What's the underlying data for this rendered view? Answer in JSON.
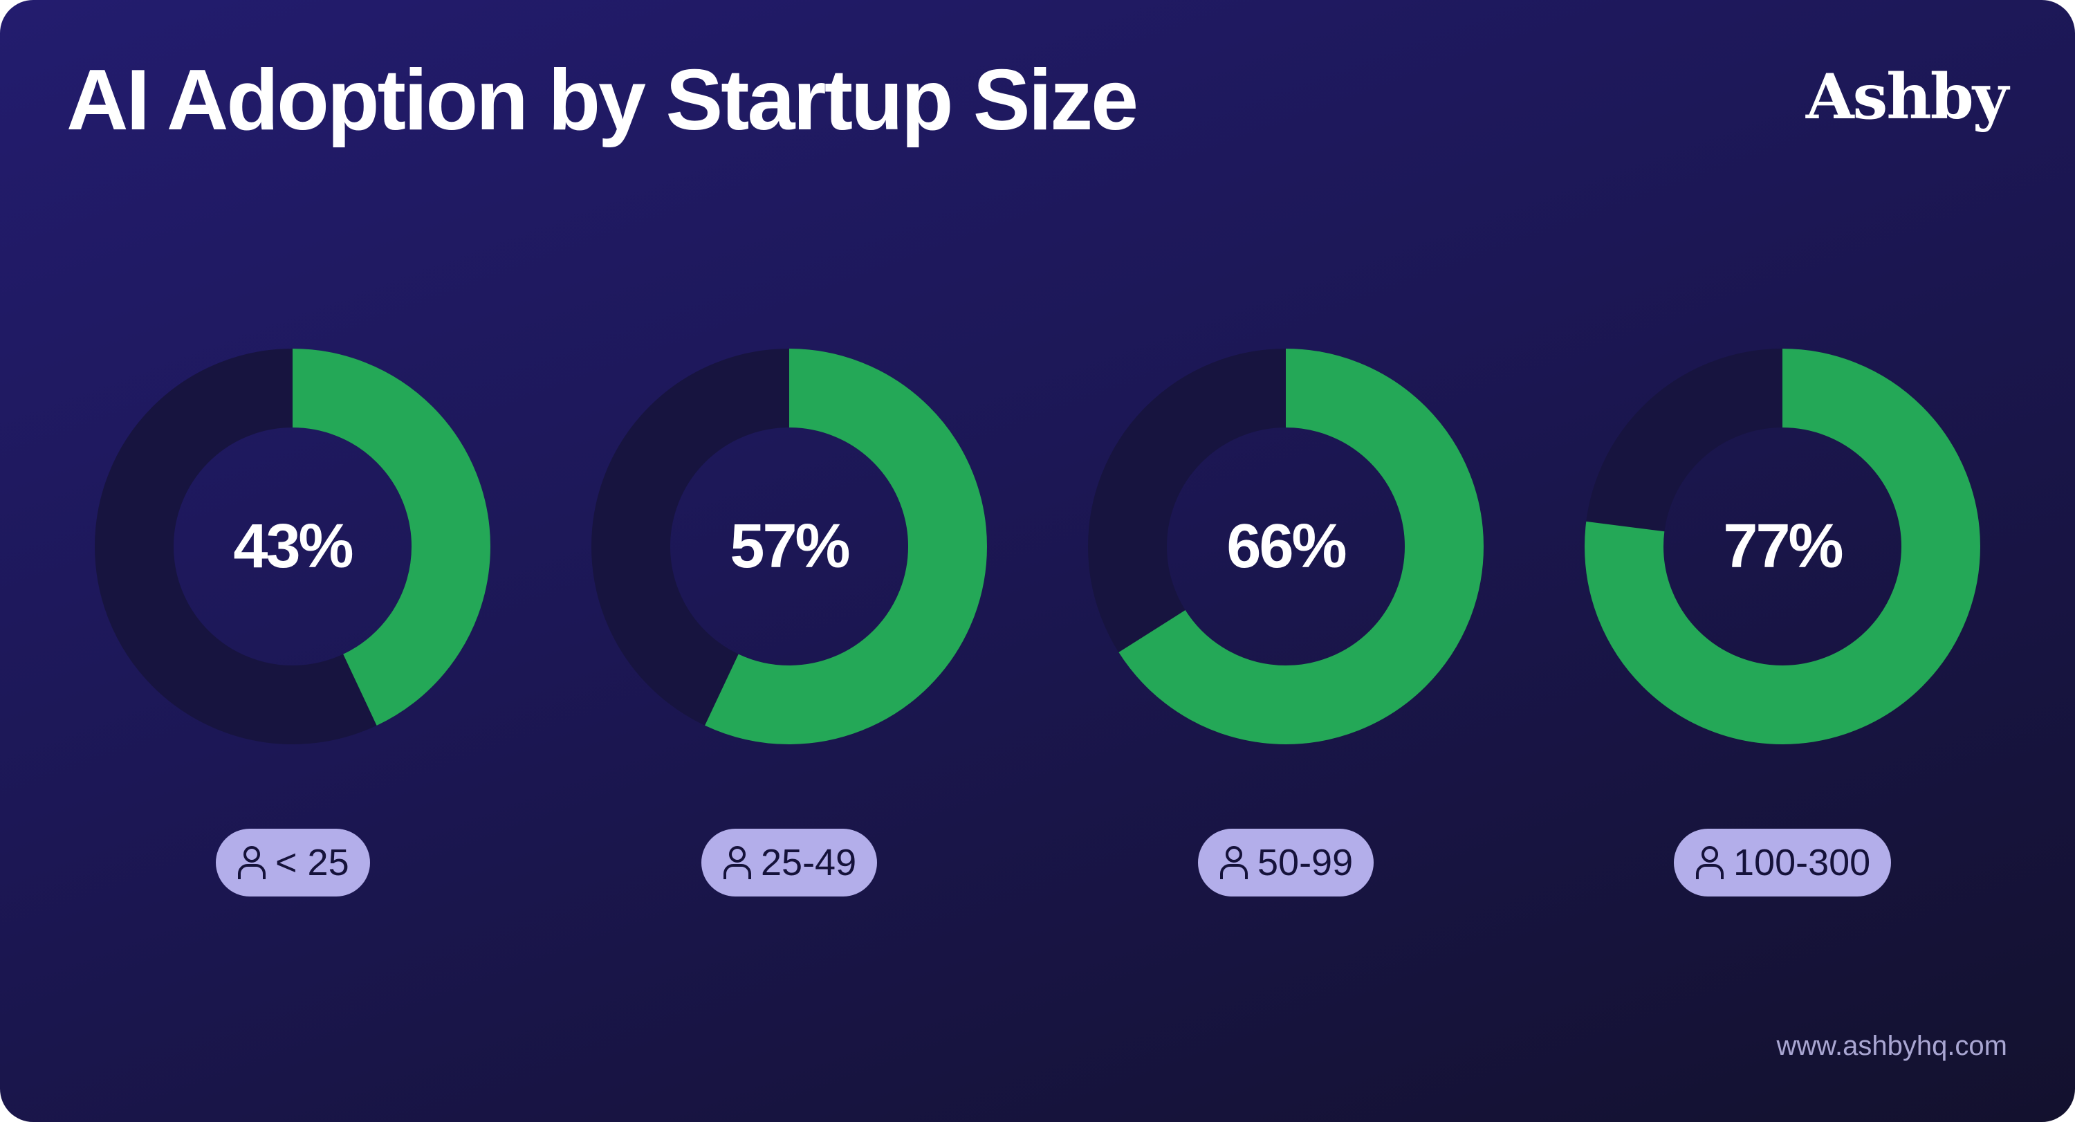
{
  "title": "AI Adoption by Startup Size",
  "brand": {
    "logo_text": "Ashby",
    "url": "www.ashbyhq.com"
  },
  "colors": {
    "filled": "#24a857",
    "track": "#17143f",
    "pill_bg": "#b3aeea",
    "pill_text": "#15123a"
  },
  "chart_data": {
    "type": "pie",
    "variant": "donut",
    "title": "AI Adoption by Startup Size",
    "categories": [
      "< 25",
      "25-49",
      "50-99",
      "100-300"
    ],
    "values": [
      43,
      57,
      66,
      77
    ],
    "value_labels": [
      "43%",
      "57%",
      "66%",
      "77%"
    ],
    "unit": "%",
    "max": 100,
    "category_icon": "person-icon"
  }
}
